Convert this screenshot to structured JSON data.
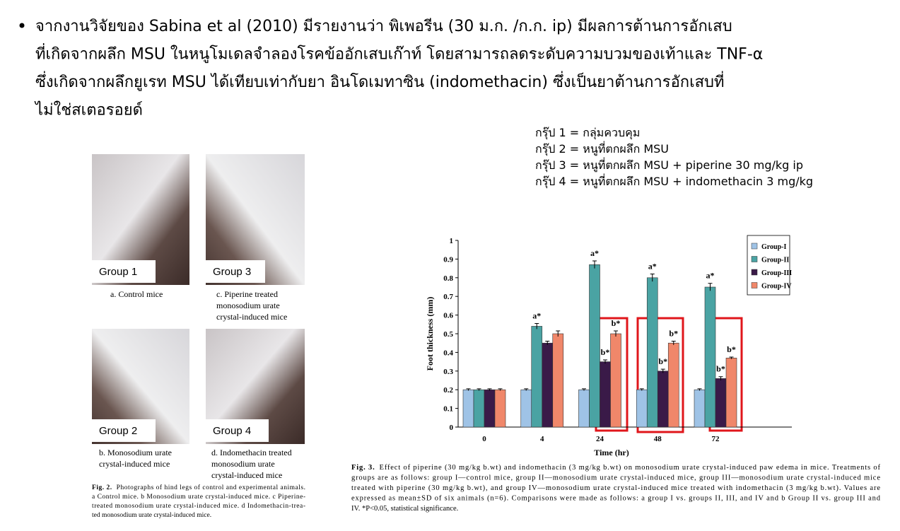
{
  "slide": {
    "paragraph": [
      "จากงานวิจัยของ Sabina et al (2010) มีรายงานว่า พิเพอรีน (30 ม.ก. /ก.ก. ip) มีผลการต้านการอักเสบ",
      "ที่เกิดจากผลึก MSU ในหนูโมเดลจำลองโรคข้ออักเสบเก๊าท์ โดยสามารถลดระดับความบวมของเท้าและ TNF-α",
      "ซึ่งเกิดจากผลึกยูเรท MSU ได้เทียบเท่ากับยา อินโดเมทาซิน (indomethacin) ซึ่งเป็นยาต้านการอักเสบที่",
      "ไม่ใช่สเตอรอยด์"
    ],
    "group_legend": [
      "กรุ๊ป 1 = กลุ่มควบคุม",
      "กรุ๊ป 2 = หนูที่ตกผลึก MSU",
      "กรุ๊ป 3 = หนูที่ตกผลึก MSU + piperine 30 mg/kg ip",
      "กรุ๊ป 4 = หนูที่ตกผลึก MSU + indomethacin 3 mg/kg"
    ],
    "photos": [
      {
        "label": "Group 1",
        "caption": [
          "a.  Control mice"
        ]
      },
      {
        "label": "Group 3",
        "caption": [
          "c.  Piperine treated",
          "monosodium urate",
          "crystal-induced mice"
        ]
      },
      {
        "label": "Group 2",
        "caption": [
          "b.  Monosodium urate",
          "crystal-induced mice"
        ]
      },
      {
        "label": "Group 4",
        "caption": [
          "d. Indomethacin treated",
          "monosodium urate",
          "crystal-induced mice"
        ]
      }
    ],
    "fig2_caption": {
      "label": "Fig. 2.",
      "lines": [
        "Photographs of hind legs of control and experimental animals.",
        "a Control mice. b Monosodium urate crystal-induced mice. c Piperine-",
        "treated monosodium urate crystal-induced mice. d Indomethacin-trea-",
        "ted monosodium urate crystal-induced mice."
      ]
    },
    "fig3_caption": {
      "label": "Fig. 3.",
      "lines": [
        "Effect of piperine (30 mg/kg b.wt) and indomethacin (3 mg/kg b.wt) on monosodium urate crystal-induced paw edema in mice. Treatments of",
        "groups are as follows: group I—control mice, group II—monosodium urate crystal-induced mice, group III—monosodium urate crystal-induced mice",
        "treated with piperine (30 mg/kg b.wt), and group IV—monosodium urate crystal-induced mice treated with indomethacin (3 mg/kg b.wt). Values are",
        "expressed as mean±SD of six animals (n=6). Comparisons were made as follows: a group I vs. groups II, III, and IV and b Group II vs. group III and",
        "IV. *P<0.05, statistical significance."
      ]
    }
  },
  "chart_data": {
    "type": "bar",
    "x_label": "Time (hr)",
    "y_label": "Foot thickness (mm)",
    "categories": [
      "0",
      "4",
      "24",
      "48",
      "72"
    ],
    "ylim": [
      0,
      1
    ],
    "yticks": [
      0,
      0.1,
      0.2,
      0.3,
      0.4,
      0.5,
      0.6,
      0.7,
      0.8,
      0.9,
      1
    ],
    "legend": "top-right",
    "series": [
      {
        "name": "Group-I",
        "color": "#9fc3e6",
        "values": [
          0.2,
          0.2,
          0.2,
          0.2,
          0.2
        ],
        "errors": [
          0.005,
          0.005,
          0.005,
          0.005,
          0.005
        ],
        "annotations": [
          null,
          null,
          null,
          null,
          null
        ]
      },
      {
        "name": "Group-II",
        "color": "#4aa3a3",
        "values": [
          0.2,
          0.54,
          0.87,
          0.8,
          0.75
        ],
        "errors": [
          0.005,
          0.015,
          0.02,
          0.02,
          0.02
        ],
        "annotations": [
          null,
          "a*",
          "a*",
          "a*",
          "a*"
        ]
      },
      {
        "name": "Group-III",
        "color": "#3a1a48",
        "values": [
          0.2,
          0.45,
          0.35,
          0.3,
          0.26
        ],
        "errors": [
          0.005,
          0.01,
          0.01,
          0.01,
          0.01
        ],
        "annotations": [
          null,
          null,
          "b*",
          "b*",
          "b*"
        ]
      },
      {
        "name": "Group-IV",
        "color": "#f0876a",
        "values": [
          0.2,
          0.5,
          0.5,
          0.45,
          0.37
        ],
        "errors": [
          0.005,
          0.015,
          0.015,
          0.01,
          0.005
        ],
        "annotations": [
          null,
          null,
          "b*",
          "b*",
          "b*"
        ]
      }
    ]
  }
}
